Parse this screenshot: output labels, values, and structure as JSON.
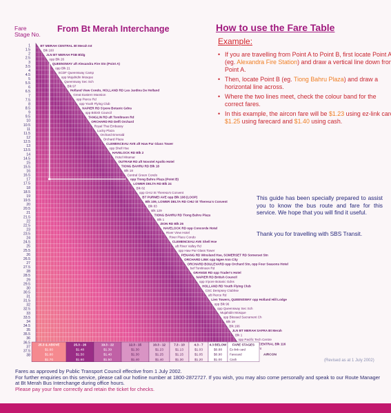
{
  "header": {
    "fare_label": "Fare",
    "stage_label": "Stage No.",
    "title": "From Bt Merah Interchange"
  },
  "howto": {
    "title": "How to use the Fare Table",
    "example": "Example:",
    "step1_a": "If you are travelling from Point A to Point B, first locate Point A (eg. ",
    "step1_hl": "Alexandra Fire Station",
    "step1_b": ") and draw a vertical line down from Point A.",
    "step2_a": "Then, locate Point B (eg. ",
    "step2_hl": "Tiong Bahru Plaza",
    "step2_b": ") and draw a horizontal line across.",
    "step3": "Where the two lines meet, check the colour band for the correct fares.",
    "step4_a": "In this example, the aircon fare will be ",
    "step4_v1": "$1.23",
    "step4_b": " using ez-link card, ",
    "step4_v2": "$1.25",
    "step4_c": " using farecard and ",
    "step4_v3": "$1.40",
    "step4_d": " using cash."
  },
  "guide": "This guide has been specially prepared to assist you to know the bus route and fare for this service. We hope that you will find it useful.",
  "thanks": "Thank you for travelling with SBS Transit.",
  "stages": [
    "1",
    "1.5",
    "2",
    "2.5",
    "3",
    "3.5",
    "4",
    "4.5",
    "5",
    "5.5",
    "6",
    "6.5",
    "7",
    "7.5",
    "8",
    "8.5",
    "9",
    "9.5",
    "10",
    "10.5",
    "11",
    "11.5",
    "12",
    "12.5",
    "13",
    "13.5",
    "14",
    "14.5",
    "15",
    "15.5",
    "16",
    "16.5",
    "17",
    "17.5",
    "18",
    "18.5",
    "19",
    "19.5",
    "20",
    "20.5",
    "21",
    "21.5",
    "22",
    "22.5",
    "23",
    "23.5",
    "24",
    "24.5",
    "25",
    "25.5",
    "26",
    "26.5",
    "27",
    "27.5",
    "28",
    "28.5",
    "29",
    "29.5",
    "30",
    "30.5",
    "31",
    "31.5",
    "32",
    "32.5",
    "33",
    "33.5",
    "34",
    "34.5",
    "35",
    "35.5",
    "36",
    "36.5",
    "37",
    "37.5",
    "38"
  ],
  "stops": [
    {
      "t": "BT MERAH CENTRAL Bt Merah Int",
      "bold": true
    },
    {
      "t": "Blk 160"
    },
    {
      "t": "JLN BT MERAH PSB Bldg",
      "bold": true
    },
    {
      "t": "opp Blk 26"
    },
    {
      "t": "QUEENSWAY aft Alexandra Fire Stn (Point A)",
      "bold": true
    },
    {
      "t": "opp Blk 21"
    },
    {
      "t": "SCDF Queensway Camp"
    },
    {
      "t": "opp Mujahidin Mosque"
    },
    {
      "t": "Queensway Sec Sch"
    },
    {
      "t": "Blk 97"
    },
    {
      "t": "Holland View Condo, HOLLAND RD Les Jardins De Holland",
      "bold": true
    },
    {
      "t": "Great Eastern Mansion"
    },
    {
      "t": "opp Pierce Rd"
    },
    {
      "t": "opp Youth Flying Club"
    },
    {
      "t": "NAPIER RD S'pore Botanic Gdns",
      "bold": true
    },
    {
      "t": "opp British Council"
    },
    {
      "t": "TANGLIN RD aft Tomlinson Rd",
      "bold": true
    },
    {
      "t": "ORCHARD RD Delfi Orchard",
      "bold": true
    },
    {
      "t": "Royal Thai Embassy"
    },
    {
      "t": "Lucky Plaza"
    },
    {
      "t": "Orchard Emerald"
    },
    {
      "t": "Orchard Plaza"
    },
    {
      "t": "CLEMENCEAU AVE aft Haw Par Glass Tower",
      "bold": true
    },
    {
      "t": "opp Shell Hse"
    },
    {
      "t": "HAVELOCK RD Blk 2",
      "bold": true
    },
    {
      "t": "Hotel Miramar"
    },
    {
      "t": "OUTRAM RD aft Novotel Apollo Hotel",
      "bold": true
    },
    {
      "t": "TIONG BAHRU RD Blk 18",
      "bold": true
    },
    {
      "t": "Blk 18"
    },
    {
      "t": "Central Green Condo"
    },
    {
      "t": "opp Tiong Bahru Plaza (Point B)",
      "bold": true
    },
    {
      "t": "LOWER DELTA RD Blk 24",
      "bold": true
    },
    {
      "t": "Blk 82"
    },
    {
      "t": "opp CHIJ St Theresa's Convent"
    },
    {
      "t": "BT PURMEI AVE opp Blk 108 (LOOP)",
      "bold": true
    },
    {
      "t": "Blk 109, LOWER DELTA RD CHIJ St Theresa's Convent",
      "bold": true
    },
    {
      "t": "Blk 83"
    },
    {
      "t": "Blk 129"
    },
    {
      "t": "TIONG BAHRU RD Tiong Bahru Plaza",
      "bold": true
    },
    {
      "t": "Blk 1"
    },
    {
      "t": "ZION RD Blk 26",
      "bold": true
    },
    {
      "t": "HAVELOCK RD opp Concorde Hotel",
      "bold": true
    },
    {
      "t": "River View Hotel"
    },
    {
      "t": "River Place Condo"
    },
    {
      "t": "CLEMENCEAU AVE Shell Hse",
      "bold": true
    },
    {
      "t": "aft River Valley Rd"
    },
    {
      "t": "opp Haw Par Glass Tower"
    },
    {
      "t": "PENANG RD Winsland Hse, SOMERSET RD Somerset Stn",
      "bold": true
    },
    {
      "t": "ORCHARD LINK opp Ngee Ann City",
      "bold": true
    },
    {
      "t": "ORCHARD BOULEVARD opp Orchard Stn, opp Four Seasons Hotel",
      "bold": true
    },
    {
      "t": "bef Tomlinson Rd"
    },
    {
      "t": "GRANGE RD opp Trader's Hotel",
      "bold": true
    },
    {
      "t": "NAPIER RD British Council",
      "bold": true
    },
    {
      "t": "opp S'pore Botanic Gdns"
    },
    {
      "t": "HOLLAND RD Youth Flying Club",
      "bold": true
    },
    {
      "t": "CSC Dempsey Clubhse"
    },
    {
      "t": "aft Pierce Rd"
    },
    {
      "t": "Lien Towers, QUEENSWAY opp Holland Hill Lodge",
      "bold": true
    },
    {
      "t": "opp Blk 96"
    },
    {
      "t": "opp Queensway Sec Sch"
    },
    {
      "t": "Mujahidin Mosque"
    },
    {
      "t": "opp Blessed Sacrament Ch"
    },
    {
      "t": "Blk 19"
    },
    {
      "t": "Blk 166"
    },
    {
      "t": "JLN BT MERAH SAFRA Bt Merah",
      "bold": true
    },
    {
      "t": "Blk 1"
    },
    {
      "t": "opp Pacific Tech Centre"
    },
    {
      "t": "BT MERAH CENTRAL Blk 116",
      "bold": true
    },
    {
      "t": "Bt Merah Int"
    }
  ],
  "fares": {
    "headers": [
      "25.3 & ABOVE",
      "25.3 - 26",
      "19.3 - 22",
      "12.3 - 15",
      "10.3 - 12",
      "7.3 - 10",
      "4.3 - 7",
      "4.3 BELOW"
    ],
    "colors": [
      "#f5898f",
      "#9a2d86",
      "#c061a6",
      "#d994c4",
      "#e9bddb",
      "#f3d6e8",
      "#faebf3",
      "#ffffff"
    ],
    "aircon_ez": [
      "$1.60",
      "$1.48",
      "$1.39",
      "$1.30",
      "$1.23",
      "$1.13",
      "$1.03",
      "$0.88"
    ],
    "aircon_card": [
      "$1.60",
      "$1.50",
      "$1.40",
      "$1.30",
      "$1.25",
      "$1.15",
      "$1.05",
      "$0.90"
    ],
    "aircon_cash": [
      "$1.70",
      "$1.60",
      "$1.50",
      "$1.40",
      "$1.40",
      "$1.30",
      "$1.20",
      "$1.00"
    ],
    "fare_stages_label": "FARE STAGES",
    "ez_label": "Ez-link card",
    "card_label": "Farecard",
    "cash_label": "Cash",
    "aircon_label": "AIRCON"
  },
  "revised": "(Revised as at 1 July 2002)",
  "footer": {
    "line1": "Fares as approved by Public Transport Council effective from 1 July 2002.",
    "line2": "For further enquiries on this service, please call our hotline number at 1800-2872727. If you wish, you may also come personally and speak to our Route Manager at Bt Merah Bus Interchange during office hours.",
    "line3": "Please pay your fare correctly and retain the ticket for checks."
  }
}
